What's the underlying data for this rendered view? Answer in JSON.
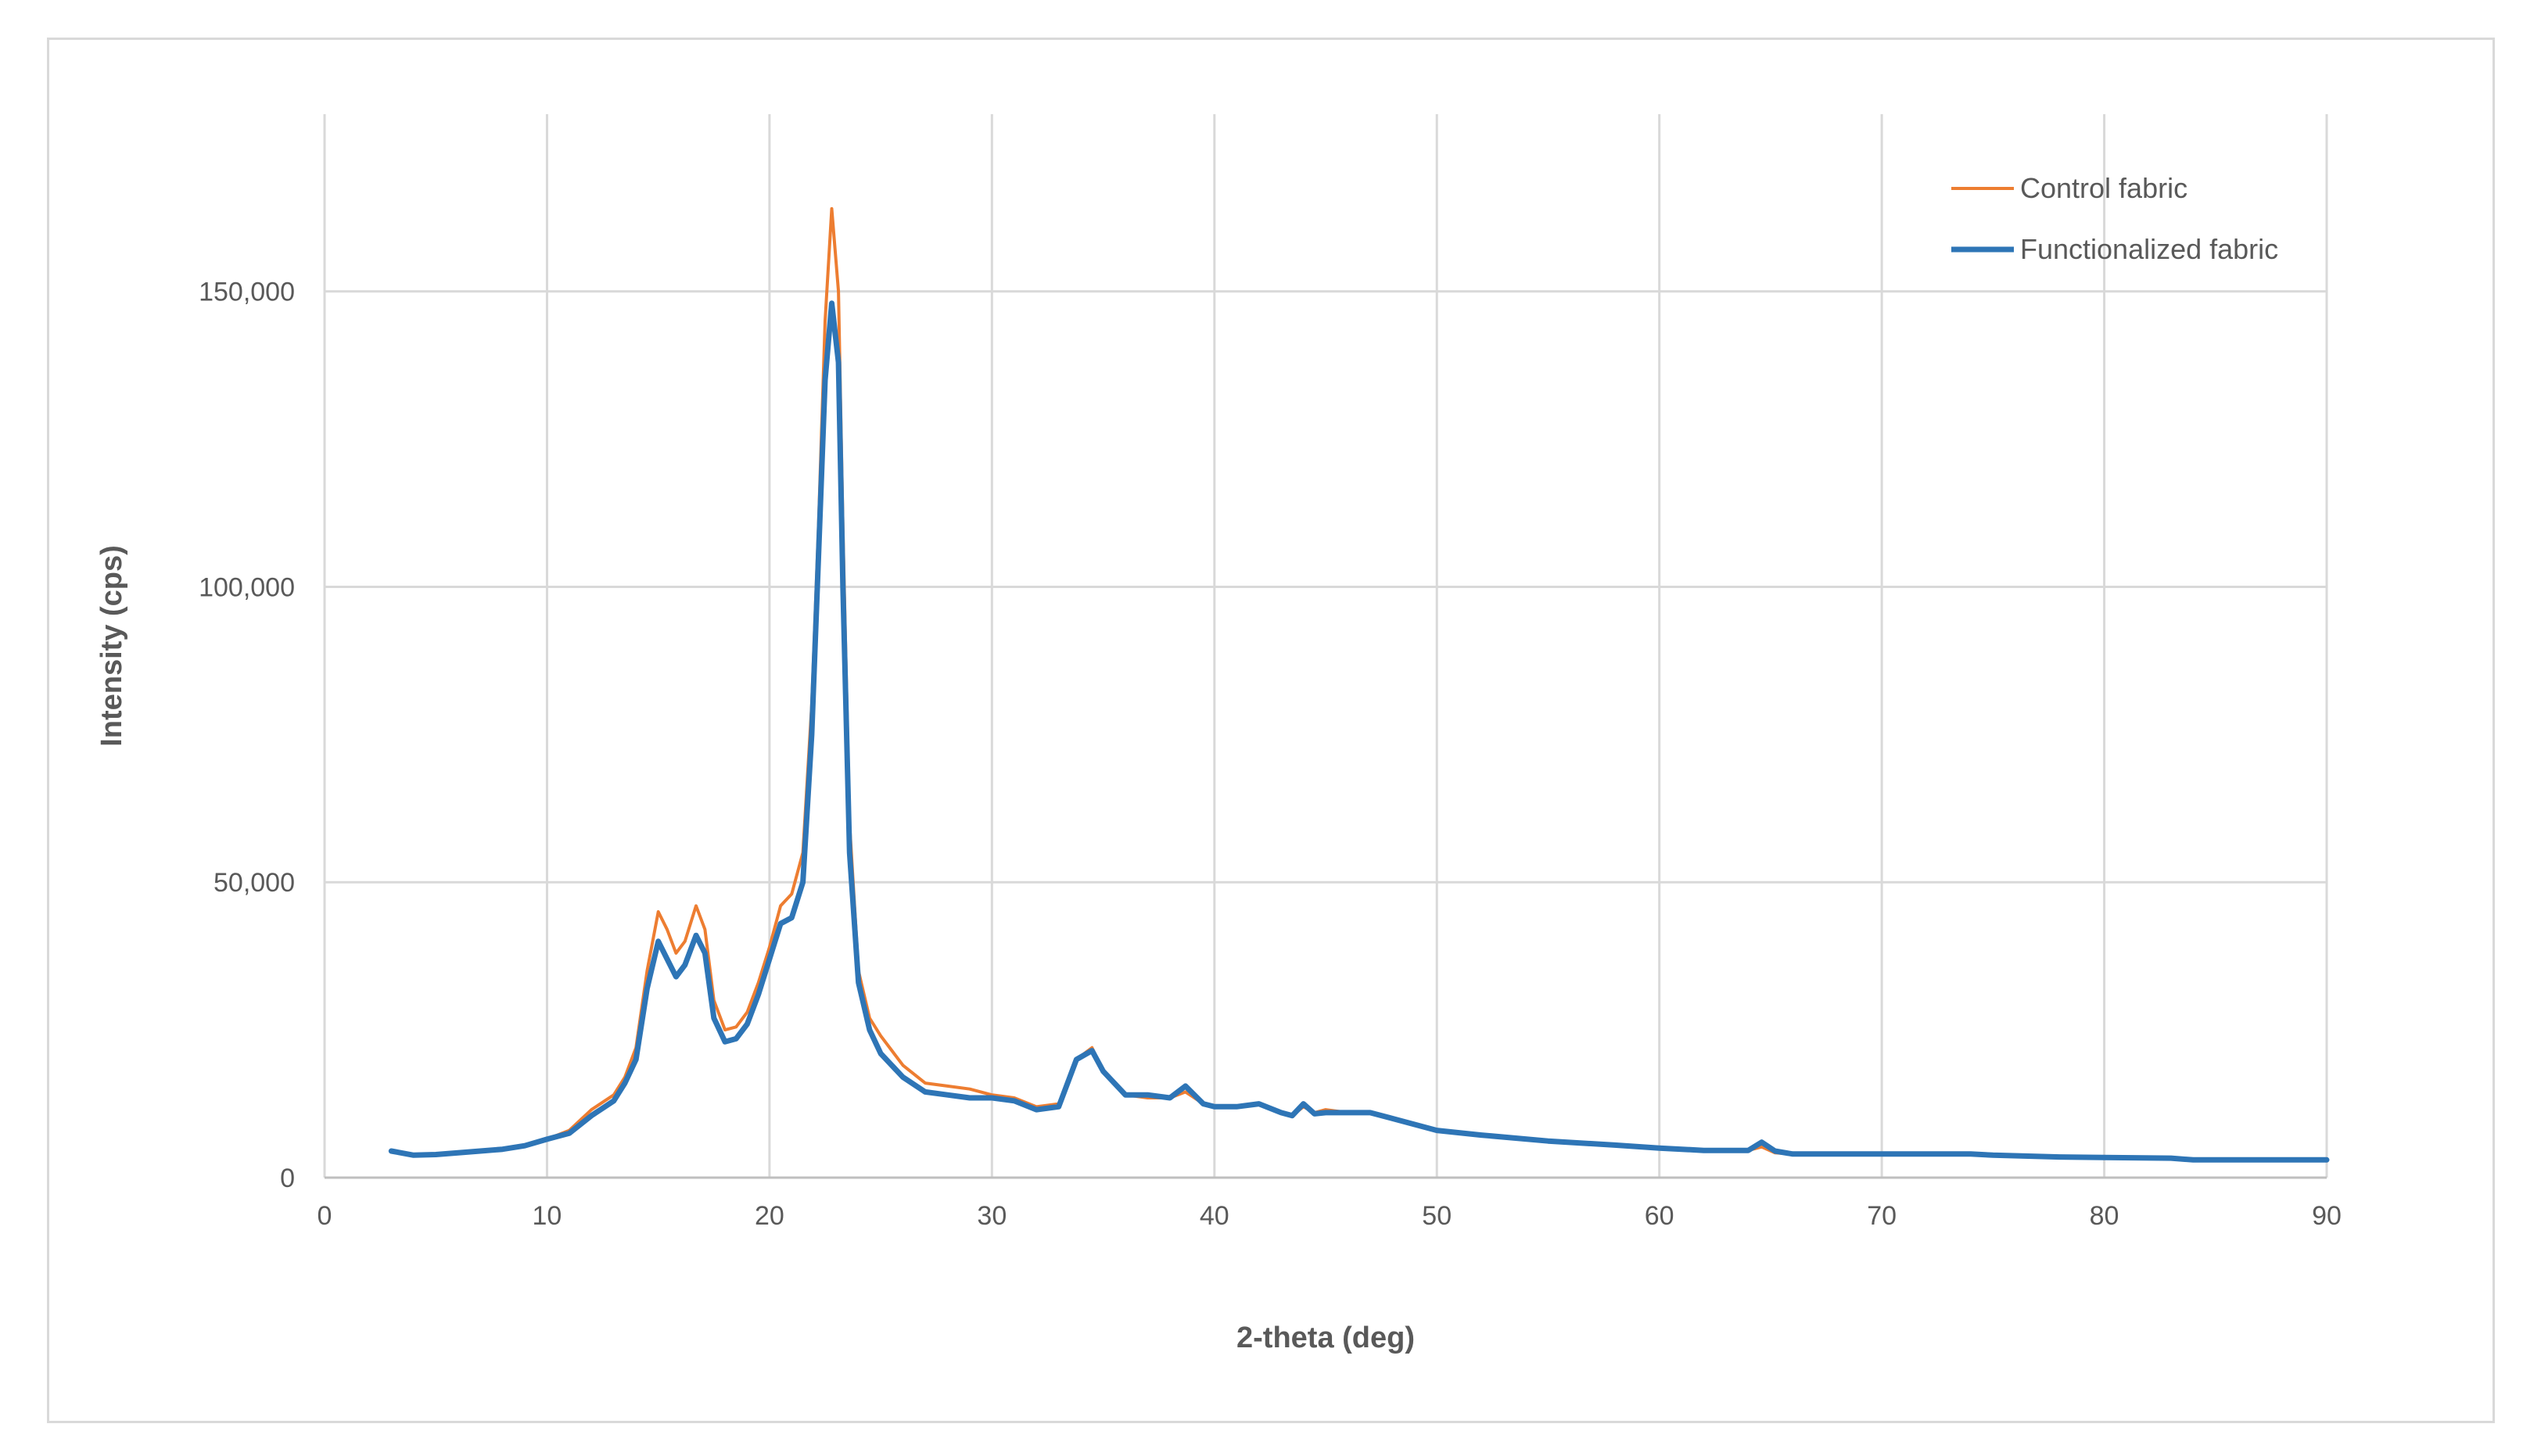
{
  "chart_data": {
    "type": "line",
    "title": "",
    "xlabel": "2-theta (deg)",
    "ylabel": "Intensity (cps)",
    "xlim": [
      0,
      90
    ],
    "ylim": [
      0,
      180000
    ],
    "x_ticks": [
      0,
      10,
      20,
      30,
      40,
      50,
      60,
      70,
      80,
      90
    ],
    "y_ticks": [
      0,
      50000,
      100000,
      150000
    ],
    "x_tick_labels": [
      "0",
      "10",
      "20",
      "30",
      "40",
      "50",
      "60",
      "70",
      "80",
      "90"
    ],
    "y_tick_labels": [
      "0",
      "50,000",
      "100,000",
      "150,000"
    ],
    "grid": true,
    "legend_position": "top-right",
    "series": [
      {
        "name": "Control fabric",
        "color": "#ED7D31",
        "points": [
          [
            3,
            4500
          ],
          [
            4,
            3800
          ],
          [
            5,
            3900
          ],
          [
            6,
            4200
          ],
          [
            7,
            4500
          ],
          [
            8,
            4800
          ],
          [
            9,
            5400
          ],
          [
            10,
            6500
          ],
          [
            11,
            8000
          ],
          [
            12,
            11500
          ],
          [
            13,
            14000
          ],
          [
            13.5,
            17000
          ],
          [
            14,
            22000
          ],
          [
            14.5,
            35000
          ],
          [
            15,
            45000
          ],
          [
            15.4,
            42000
          ],
          [
            15.8,
            38000
          ],
          [
            16.2,
            40000
          ],
          [
            16.7,
            46000
          ],
          [
            17.1,
            42000
          ],
          [
            17.5,
            30000
          ],
          [
            18,
            25000
          ],
          [
            18.5,
            25500
          ],
          [
            19,
            28000
          ],
          [
            19.5,
            33000
          ],
          [
            20,
            39000
          ],
          [
            20.5,
            46000
          ],
          [
            21,
            48000
          ],
          [
            21.5,
            55000
          ],
          [
            21.9,
            80000
          ],
          [
            22.2,
            110000
          ],
          [
            22.5,
            145000
          ],
          [
            22.8,
            164000
          ],
          [
            23.1,
            150000
          ],
          [
            23.3,
            110000
          ],
          [
            23.6,
            60000
          ],
          [
            24,
            35000
          ],
          [
            24.5,
            27000
          ],
          [
            25,
            24000
          ],
          [
            26,
            19000
          ],
          [
            27,
            16000
          ],
          [
            28,
            15500
          ],
          [
            29,
            15000
          ],
          [
            30,
            14000
          ],
          [
            31,
            13500
          ],
          [
            32,
            12000
          ],
          [
            33,
            12500
          ],
          [
            33.8,
            20000
          ],
          [
            34.5,
            22000
          ],
          [
            35,
            18000
          ],
          [
            36,
            14000
          ],
          [
            37,
            13500
          ],
          [
            38,
            13500
          ],
          [
            38.7,
            14500
          ],
          [
            39.5,
            12500
          ],
          [
            40,
            12000
          ],
          [
            41,
            12000
          ],
          [
            42,
            12500
          ],
          [
            43,
            11000
          ],
          [
            43.5,
            10500
          ],
          [
            44,
            12000
          ],
          [
            44.5,
            11000
          ],
          [
            45,
            11500
          ],
          [
            46,
            11000
          ],
          [
            47,
            11000
          ],
          [
            48,
            10000
          ],
          [
            50,
            8000
          ],
          [
            52,
            7200
          ],
          [
            55,
            6200
          ],
          [
            58,
            5500
          ],
          [
            60,
            5000
          ],
          [
            62,
            4600
          ],
          [
            64,
            4600
          ],
          [
            64.6,
            5200
          ],
          [
            65.2,
            4200
          ],
          [
            66,
            4000
          ],
          [
            70,
            4000
          ],
          [
            74,
            4000
          ],
          [
            75,
            3800
          ],
          [
            78,
            3500
          ],
          [
            80,
            3400
          ],
          [
            83,
            3300
          ],
          [
            84,
            3000
          ],
          [
            90,
            3000
          ]
        ]
      },
      {
        "name": "Functionalized fabric",
        "color": "#2E75B6",
        "points": [
          [
            3,
            4500
          ],
          [
            4,
            3800
          ],
          [
            5,
            3900
          ],
          [
            6,
            4200
          ],
          [
            7,
            4500
          ],
          [
            8,
            4800
          ],
          [
            9,
            5400
          ],
          [
            10,
            6500
          ],
          [
            11,
            7500
          ],
          [
            12,
            10500
          ],
          [
            13,
            13000
          ],
          [
            13.5,
            16000
          ],
          [
            14,
            20000
          ],
          [
            14.5,
            32000
          ],
          [
            15,
            40000
          ],
          [
            15.4,
            37000
          ],
          [
            15.8,
            34000
          ],
          [
            16.2,
            36000
          ],
          [
            16.7,
            41000
          ],
          [
            17.1,
            38000
          ],
          [
            17.5,
            27000
          ],
          [
            18,
            23000
          ],
          [
            18.5,
            23500
          ],
          [
            19,
            26000
          ],
          [
            19.5,
            31000
          ],
          [
            20,
            37000
          ],
          [
            20.5,
            43000
          ],
          [
            21,
            44000
          ],
          [
            21.5,
            50000
          ],
          [
            21.9,
            75000
          ],
          [
            22.2,
            105000
          ],
          [
            22.5,
            135000
          ],
          [
            22.8,
            148000
          ],
          [
            23.1,
            138000
          ],
          [
            23.3,
            100000
          ],
          [
            23.6,
            55000
          ],
          [
            24,
            33000
          ],
          [
            24.5,
            25000
          ],
          [
            25,
            21000
          ],
          [
            26,
            17000
          ],
          [
            27,
            14500
          ],
          [
            28,
            14000
          ],
          [
            29,
            13500
          ],
          [
            30,
            13500
          ],
          [
            31,
            13000
          ],
          [
            32,
            11500
          ],
          [
            33,
            12000
          ],
          [
            33.8,
            20000
          ],
          [
            34.5,
            21500
          ],
          [
            35,
            18000
          ],
          [
            36,
            14000
          ],
          [
            37,
            14000
          ],
          [
            38,
            13500
          ],
          [
            38.7,
            15500
          ],
          [
            39.5,
            12500
          ],
          [
            40,
            12000
          ],
          [
            41,
            12000
          ],
          [
            42,
            12500
          ],
          [
            43,
            11000
          ],
          [
            43.5,
            10500
          ],
          [
            44,
            12500
          ],
          [
            44.5,
            10800
          ],
          [
            45,
            11000
          ],
          [
            46,
            11000
          ],
          [
            47,
            11000
          ],
          [
            48,
            10000
          ],
          [
            50,
            8000
          ],
          [
            52,
            7200
          ],
          [
            55,
            6200
          ],
          [
            58,
            5500
          ],
          [
            60,
            5000
          ],
          [
            62,
            4600
          ],
          [
            64,
            4600
          ],
          [
            64.6,
            6000
          ],
          [
            65.2,
            4500
          ],
          [
            66,
            4000
          ],
          [
            70,
            4000
          ],
          [
            74,
            4000
          ],
          [
            75,
            3800
          ],
          [
            78,
            3500
          ],
          [
            80,
            3400
          ],
          [
            83,
            3300
          ],
          [
            84,
            3000
          ],
          [
            90,
            3000
          ]
        ]
      }
    ]
  }
}
